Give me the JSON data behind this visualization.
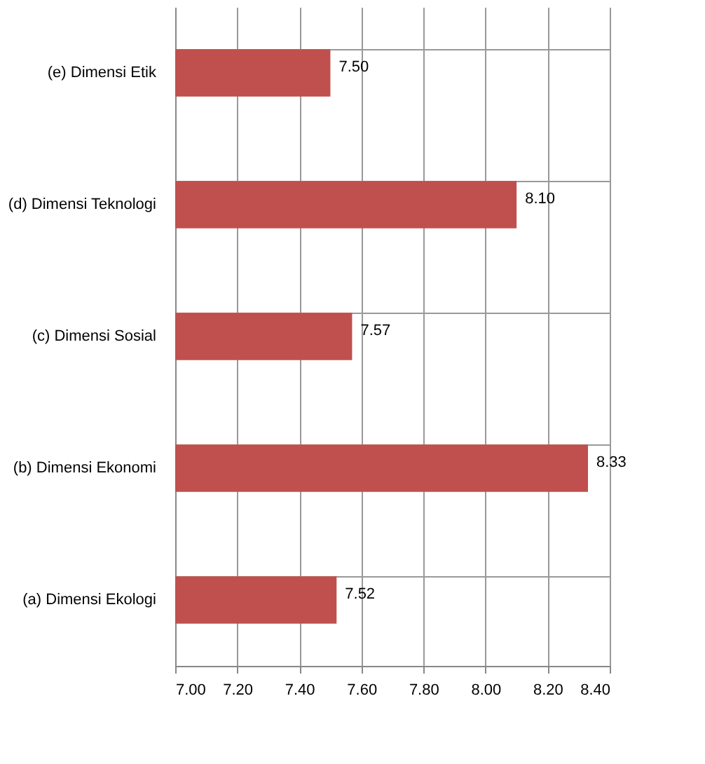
{
  "chart_data": {
    "type": "bar",
    "orientation": "horizontal",
    "categories": [
      "(e) Dimensi Etik",
      "(d) Dimensi Teknologi",
      "(c) Dimensi Sosial",
      "(b) Dimensi Ekonomi",
      "(a) Dimensi Ekologi"
    ],
    "values": [
      7.5,
      8.1,
      7.57,
      8.33,
      7.52
    ],
    "value_labels": [
      "7.50",
      "8.10",
      "7.57",
      "8.33",
      "7.52"
    ],
    "color": "#c0504d",
    "xlim": [
      7.0,
      8.4
    ],
    "xticks": [
      {
        "value": 7.0,
        "label": "7.00"
      },
      {
        "value": 7.2,
        "label": "7.20"
      },
      {
        "value": 7.4,
        "label": "7.40"
      },
      {
        "value": 7.6,
        "label": "7.60"
      },
      {
        "value": 7.8,
        "label": "7.80"
      },
      {
        "value": 8.0,
        "label": "8.00"
      },
      {
        "value": 8.2,
        "label": "8.20"
      },
      {
        "value": 8.4,
        "label": "8.40"
      }
    ],
    "grid": true
  }
}
